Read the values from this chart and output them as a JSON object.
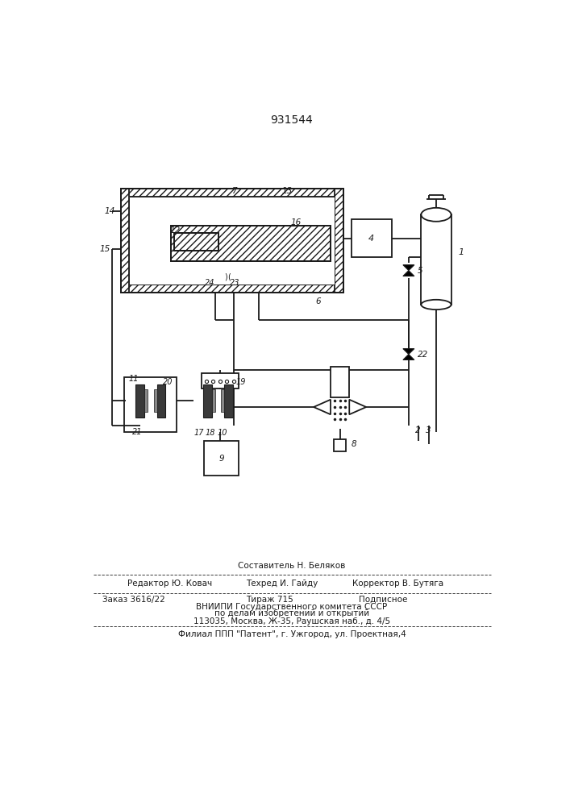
{
  "patent_number": "931544",
  "bg": "#ffffff",
  "lc": "#1a1a1a",
  "footer_composer": "Составитель Н. Беляков",
  "footer_editor": "Редактор Ю. Ковач",
  "footer_tech": "Техред И. Гайду",
  "footer_corrector": "Корректор В. Бутяга",
  "footer_order": "Заказ 3616/22",
  "footer_tirazh": "Тираж 715",
  "footer_podp": "Подписное",
  "footer_vniipи": "ВНИИПИ Государственного комитета СССР",
  "footer_dela": "по делам изобретений и открытий",
  "footer_addr": "113035, Москва, Ж-35, Раушская наб., д. 4/5",
  "footer_filial": "Филиал ППП \"Патент\", г. Ужгород, ул. Проектная,4"
}
